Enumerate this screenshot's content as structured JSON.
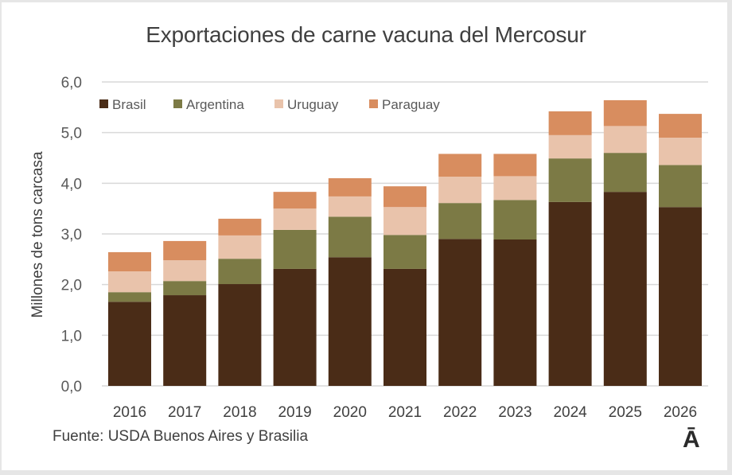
{
  "chart_data": {
    "type": "bar",
    "stacked": true,
    "title": "Exportaciones de carne vacuna del Mercosur",
    "xlabel": "",
    "ylabel": "Millones de tons carcasa",
    "ylim": [
      0,
      6
    ],
    "yticks": [
      "0,0",
      "1,0",
      "2,0",
      "3,0",
      "4,0",
      "5,0",
      "6,0"
    ],
    "grid": true,
    "legend_position": "top-left",
    "categories": [
      "2016",
      "2017",
      "2018",
      "2019",
      "2020",
      "2021",
      "2022",
      "2023",
      "2024",
      "2025",
      "2026"
    ],
    "series": [
      {
        "name": "Brasil",
        "color": "#4a2c17",
        "values": [
          1.66,
          1.79,
          2.01,
          2.31,
          2.54,
          2.31,
          2.9,
          2.89,
          3.63,
          3.83,
          3.53
        ]
      },
      {
        "name": "Argentina",
        "color": "#7c7a45",
        "values": [
          0.19,
          0.28,
          0.5,
          0.77,
          0.8,
          0.67,
          0.71,
          0.78,
          0.86,
          0.77,
          0.83
        ]
      },
      {
        "name": "Uruguay",
        "color": "#e9c3ab",
        "values": [
          0.41,
          0.41,
          0.46,
          0.42,
          0.4,
          0.55,
          0.52,
          0.47,
          0.46,
          0.53,
          0.54
        ]
      },
      {
        "name": "Paraguay",
        "color": "#d88d5f",
        "values": [
          0.38,
          0.38,
          0.33,
          0.33,
          0.36,
          0.41,
          0.45,
          0.44,
          0.47,
          0.51,
          0.47
        ]
      }
    ],
    "source": "Fuente: USDA Buenos Aires y Brasilia"
  },
  "logo_text": "Ā"
}
